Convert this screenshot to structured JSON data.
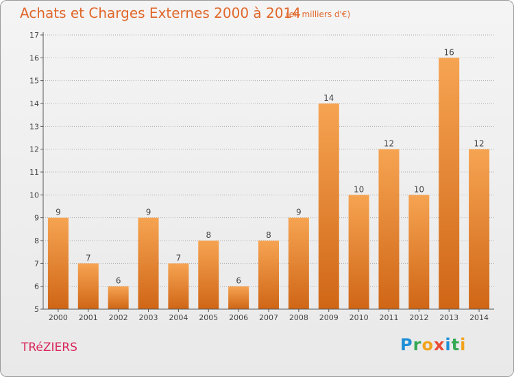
{
  "page": {
    "title": "Achats et Charges Externes 2000 à 2014",
    "unit_note": "(en milliers d'€)",
    "commune": "TRéZIERS",
    "logo_text": "Proxiti",
    "logo_letters": [
      {
        "ch": "P",
        "color": "#1d8fd6"
      },
      {
        "ch": "r",
        "color": "#34a853"
      },
      {
        "ch": "o",
        "color": "#f2a31b"
      },
      {
        "ch": "x",
        "color": "#e94b35"
      },
      {
        "ch": "i",
        "color": "#1d8fd6"
      },
      {
        "ch": "t",
        "color": "#34a853"
      },
      {
        "ch": "i",
        "color": "#f2a31b"
      }
    ]
  },
  "colors": {
    "title": "#e0672a",
    "commune": "#d9265a",
    "bar_top": "#f6a452",
    "bar_bottom": "#cf6616",
    "axis": "#555555",
    "grid": "#aaaaaa"
  },
  "chart_data": {
    "type": "bar",
    "title": "Achats et Charges Externes 2000 à 2014",
    "subtitle": "(en milliers d'€)",
    "categories": [
      "2000",
      "2001",
      "2002",
      "2003",
      "2004",
      "2005",
      "2006",
      "2007",
      "2008",
      "2009",
      "2010",
      "2011",
      "2012",
      "2013",
      "2014"
    ],
    "values": [
      9,
      7,
      6,
      9,
      7,
      8,
      6,
      8,
      9,
      14,
      10,
      12,
      10,
      16,
      12
    ],
    "ylim": [
      5,
      17
    ],
    "yticks": [
      5,
      6,
      7,
      8,
      9,
      10,
      11,
      12,
      13,
      14,
      15,
      16,
      17
    ],
    "grid": true,
    "xlabel": "",
    "ylabel": ""
  }
}
